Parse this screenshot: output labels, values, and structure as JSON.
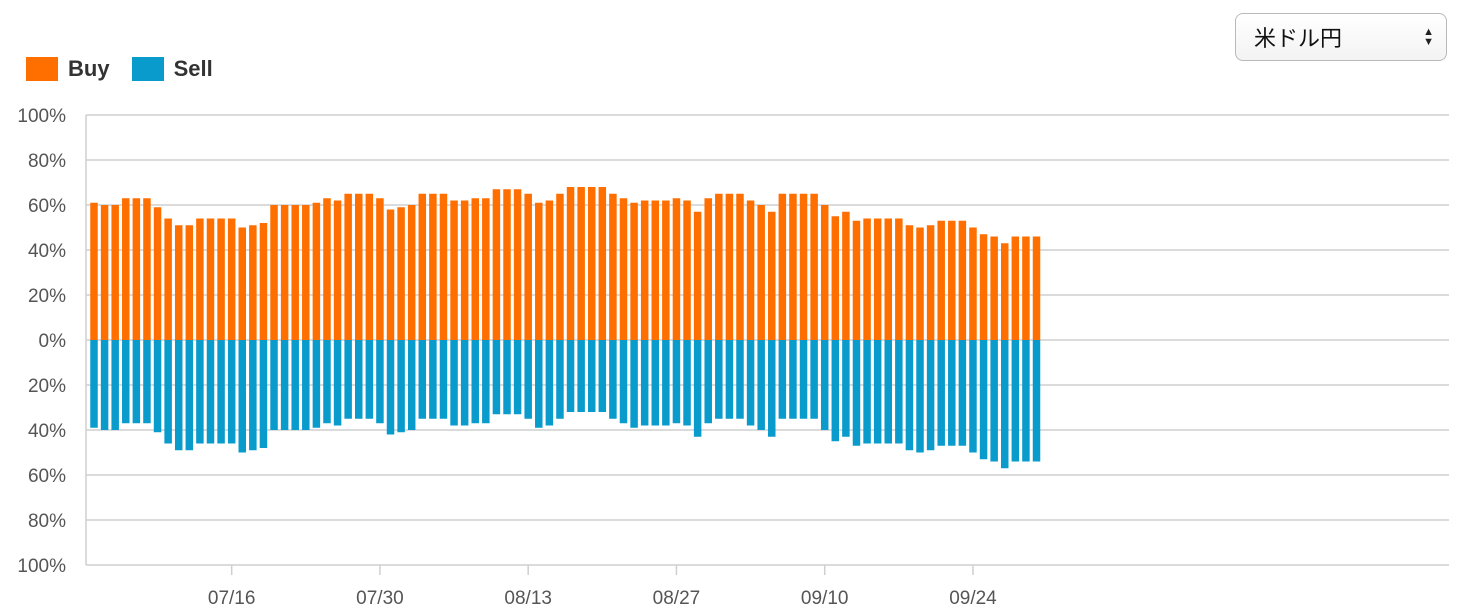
{
  "currency_select": {
    "value": "米ドル円"
  },
  "legend": [
    {
      "key": "buy",
      "label": "Buy",
      "color": "#ff6f00"
    },
    {
      "key": "sell",
      "label": "Sell",
      "color": "#0a9bcd"
    }
  ],
  "chart_data": {
    "type": "bar",
    "title": "",
    "xlabel": "",
    "ylabel": "",
    "ylim": [
      -100,
      100
    ],
    "y_ticks": [
      "100%",
      "80%",
      "60%",
      "40%",
      "20%",
      "0%",
      "20%",
      "40%",
      "60%",
      "80%",
      "100%"
    ],
    "y_tick_values": [
      100,
      80,
      60,
      40,
      20,
      0,
      -20,
      -40,
      -60,
      -80,
      -100
    ],
    "x_tick_labels": [
      "07/16",
      "07/30",
      "08/13",
      "08/27",
      "09/10",
      "09/24"
    ],
    "x_tick_index": [
      13,
      27,
      41,
      55,
      69,
      83
    ],
    "grid": true,
    "legend_position": "top-left",
    "series": [
      {
        "name": "Buy",
        "color": "#ff6f00",
        "values": [
          61,
          60,
          60,
          63,
          63,
          63,
          59,
          54,
          51,
          51,
          54,
          54,
          54,
          54,
          50,
          51,
          52,
          60,
          60,
          60,
          60,
          61,
          63,
          62,
          65,
          65,
          65,
          63,
          58,
          59,
          60,
          65,
          65,
          65,
          62,
          62,
          63,
          63,
          67,
          67,
          67,
          65,
          61,
          62,
          65,
          68,
          68,
          68,
          68,
          65,
          63,
          61,
          62,
          62,
          62,
          63,
          62,
          57,
          63,
          65,
          65,
          65,
          62,
          60,
          57,
          65,
          65,
          65,
          65,
          60,
          55,
          57,
          53,
          54,
          54,
          54,
          54,
          51,
          50,
          51,
          53,
          53,
          53,
          50,
          47,
          46,
          43,
          46,
          46,
          46
        ]
      },
      {
        "name": "Sell",
        "color": "#0a9bcd",
        "values": [
          39,
          40,
          40,
          37,
          37,
          37,
          41,
          46,
          49,
          49,
          46,
          46,
          46,
          46,
          50,
          49,
          48,
          40,
          40,
          40,
          40,
          39,
          37,
          38,
          35,
          35,
          35,
          37,
          42,
          41,
          40,
          35,
          35,
          35,
          38,
          38,
          37,
          37,
          33,
          33,
          33,
          35,
          39,
          38,
          35,
          32,
          32,
          32,
          32,
          35,
          37,
          39,
          38,
          38,
          38,
          37,
          38,
          43,
          37,
          35,
          35,
          35,
          38,
          40,
          43,
          35,
          35,
          35,
          35,
          40,
          45,
          43,
          47,
          46,
          46,
          46,
          46,
          49,
          50,
          49,
          47,
          47,
          47,
          50,
          53,
          54,
          57,
          54,
          54,
          54
        ]
      }
    ]
  }
}
